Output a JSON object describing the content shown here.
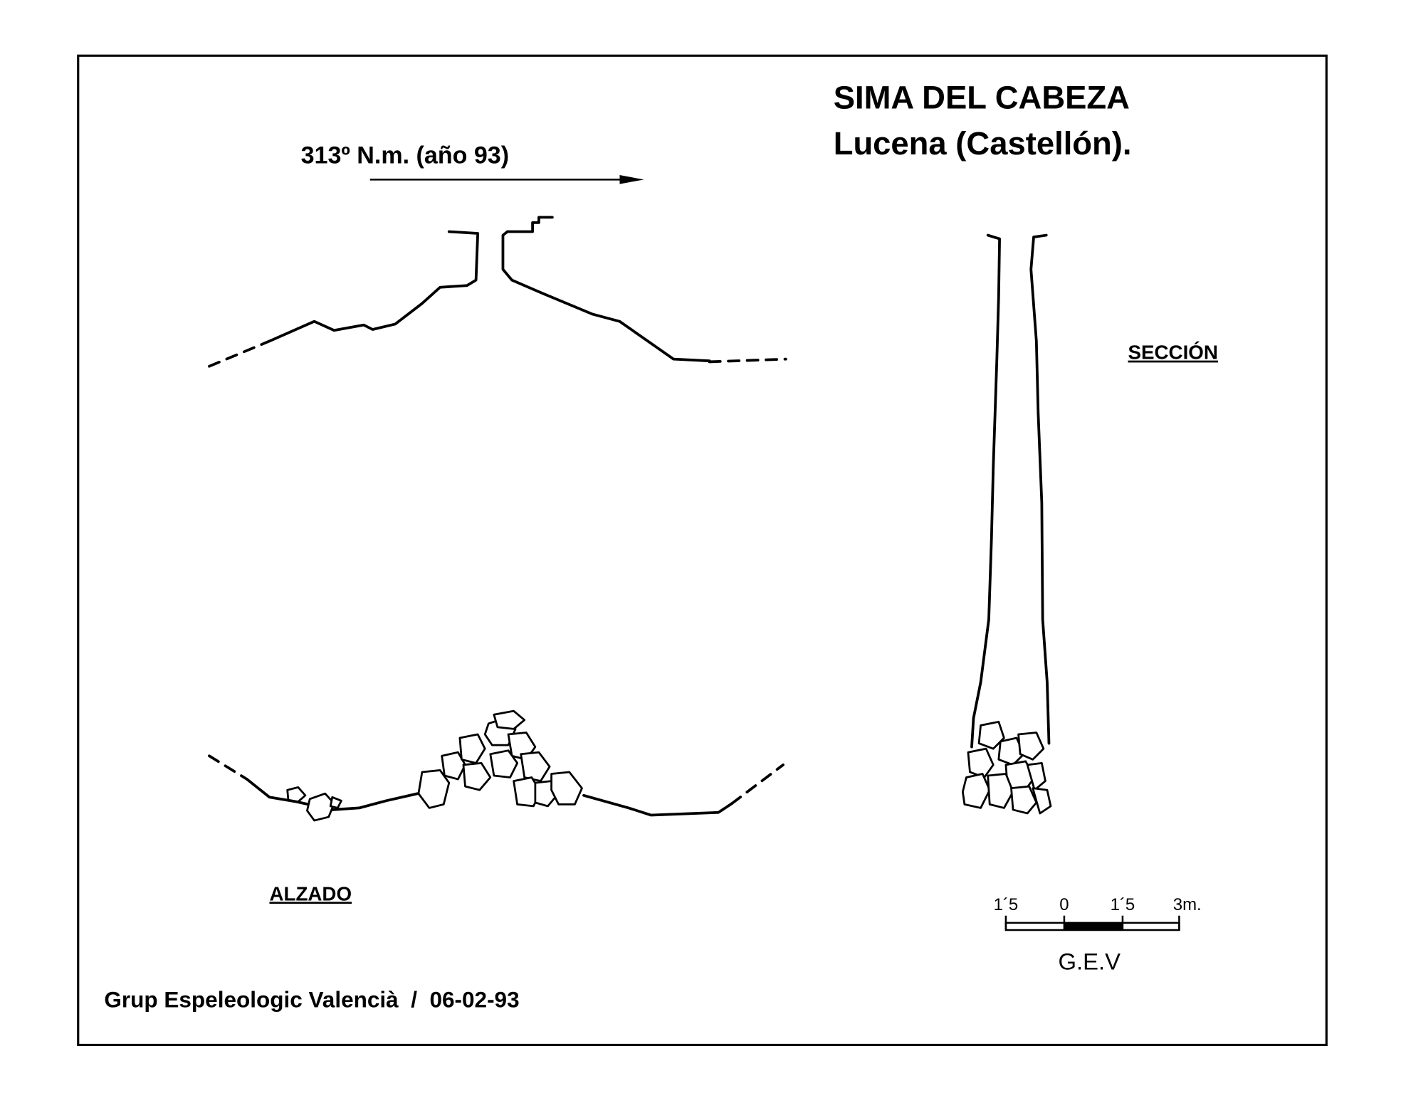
{
  "header": {
    "title": "SIMA DEL CABEZA",
    "subtitle": "Lucena (Castellón)."
  },
  "bearing": "313º N.m. (año 93)",
  "labels": {
    "section": "SECCIÓN",
    "elevation": "ALZADO"
  },
  "scale": {
    "ticks": [
      "1´5",
      "0",
      "1´5",
      "3m."
    ],
    "author": "G.E.V"
  },
  "footer": "Grup Espeleologic Valencià  /  06-02-93"
}
